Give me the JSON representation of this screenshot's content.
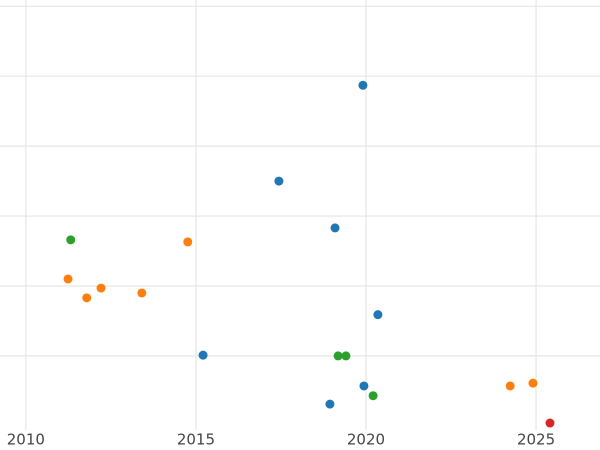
{
  "chart_data": {
    "type": "scatter",
    "xlim": [
      2009.24,
      2026.88
    ],
    "xticks": [
      2010,
      2015,
      2020,
      2025
    ],
    "ylim": [
      -0.06,
      6.09
    ],
    "yticks": [
      1,
      2,
      3,
      4,
      5,
      6
    ],
    "grid": true,
    "series": [
      {
        "color": "#1f77b4",
        "x": [
          2019.91,
          2017.44,
          2019.09,
          2020.35,
          2015.21,
          2019.94,
          2018.94
        ],
        "values": [
          4.87,
          3.5,
          2.83,
          1.59,
          1.01,
          0.57,
          0.31
        ]
      },
      {
        "color": "#ff7f0e",
        "x": [
          2014.76,
          2011.24,
          2012.21,
          2011.79,
          2013.41,
          2024.24,
          2024.91
        ],
        "values": [
          2.63,
          2.1,
          1.97,
          1.83,
          1.9,
          0.57,
          0.61
        ]
      },
      {
        "color": "#2ca02c",
        "x": [
          2011.32,
          2019.18,
          2019.41,
          2020.21
        ],
        "values": [
          2.66,
          1.0,
          1.0,
          0.43
        ]
      },
      {
        "color": "#d62728",
        "x": [
          2025.41
        ],
        "values": [
          0.04
        ]
      }
    ]
  }
}
